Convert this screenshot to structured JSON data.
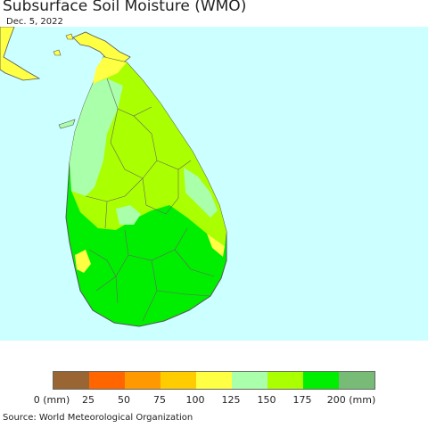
{
  "title": "Subsurface Soil Moisture (WMO)",
  "date": "Dec. 5, 2022",
  "source": "Source: World Meteorological Organization",
  "colors": {
    "ocean": "#ccffff",
    "land_india": "#ffff44",
    "border": "#555555"
  },
  "legend": {
    "colors": [
      "#996633",
      "#ff6600",
      "#ff9900",
      "#ffcc00",
      "#ffff44",
      "#aaffaa",
      "#aaff00",
      "#00ee00",
      "#77bb77"
    ],
    "ticks": [
      "0 (mm)",
      "25",
      "50",
      "75",
      "100",
      "125",
      "150",
      "175",
      "200 (mm)"
    ]
  }
}
